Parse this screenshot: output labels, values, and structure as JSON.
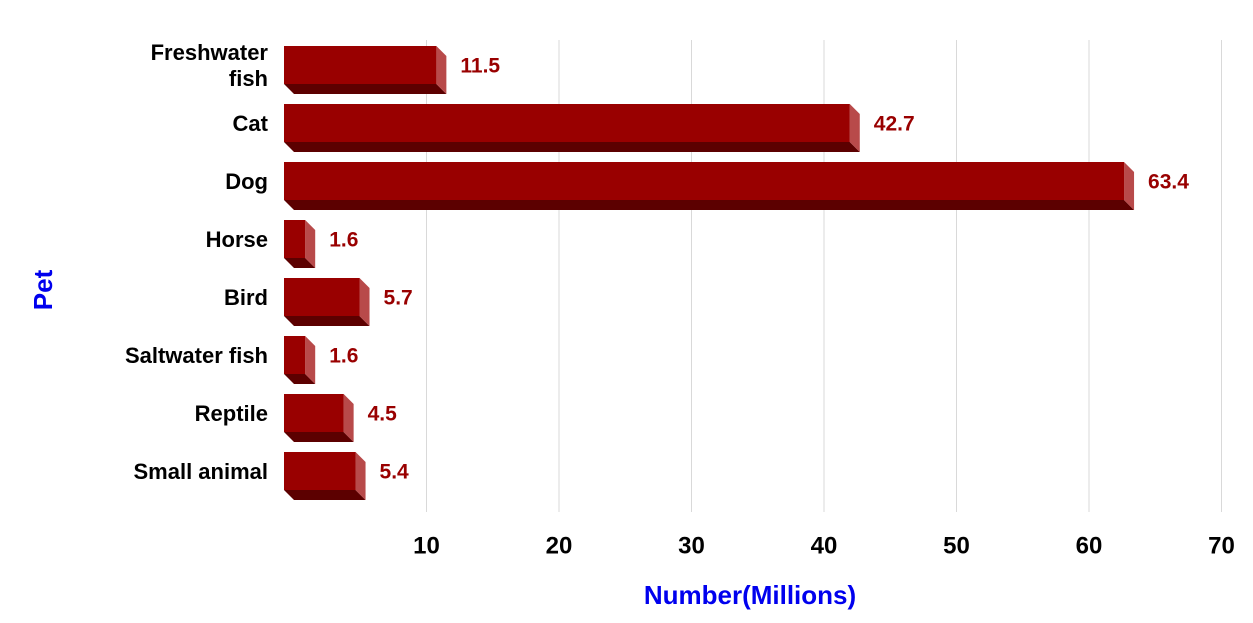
{
  "chart_data": {
    "type": "bar3d",
    "x_label": "Number(Millions)",
    "y_label": "Pet",
    "categories": [
      "Freshwater fish",
      "Cat",
      "Dog",
      "Horse",
      "Bird",
      "Saltwater fish",
      "Reptile",
      "Small animal"
    ],
    "values": [
      11.5,
      42.7,
      63.4,
      1.6,
      5.7,
      1.6,
      4.5,
      5.4
    ],
    "color": "#990000",
    "xlim": [
      0,
      70
    ],
    "xticks": [
      10,
      20,
      30,
      40,
      50,
      60,
      70
    ],
    "grid": true
  }
}
